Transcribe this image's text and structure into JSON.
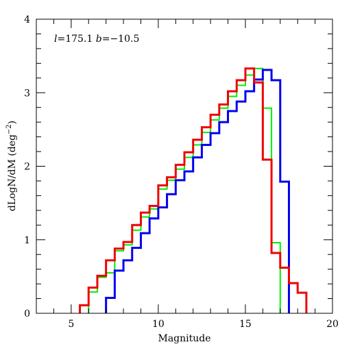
{
  "chart_data": {
    "type": "line",
    "step": true,
    "xlabel": "Magnitude",
    "ylabel": "dLogN/dM (deg",
    "ylabel_sup": "−2",
    "ylabel_close": ")",
    "annotation": {
      "l_sym": "l",
      "l_rest": "=175.1 ",
      "b_sym": "b",
      "b_rest": "=−10.5"
    },
    "xlim": [
      3,
      20
    ],
    "ylim": [
      0,
      4
    ],
    "xticks": [
      5,
      10,
      15,
      20
    ],
    "yticks": [
      0,
      1,
      2,
      3,
      4
    ],
    "xticks_minor_step": 1,
    "yticks_minor_step": 0.2,
    "series": [
      {
        "color": "#00ee00",
        "width": 2,
        "x": [
          6.0,
          6.5,
          7.0,
          7.5,
          8.0,
          8.5,
          9.0,
          9.5,
          10.0,
          10.5,
          11.0,
          11.5,
          12.0,
          12.5,
          13.0,
          13.5,
          14.0,
          14.5,
          15.0,
          15.5,
          16.0,
          16.5,
          17.0
        ],
        "y": [
          0.29,
          0.49,
          0.55,
          0.85,
          0.93,
          1.13,
          1.31,
          1.42,
          1.69,
          1.81,
          1.96,
          2.12,
          2.29,
          2.46,
          2.63,
          2.79,
          2.95,
          3.1,
          3.24,
          3.33,
          2.79,
          0.96,
          0.0
        ]
      },
      {
        "color": "#0000ee",
        "width": 3,
        "x": [
          7.0,
          7.5,
          8.0,
          8.5,
          9.0,
          9.5,
          10.0,
          10.5,
          11.0,
          11.5,
          12.0,
          12.5,
          13.0,
          13.5,
          14.0,
          14.5,
          15.0,
          15.5,
          16.0,
          16.5,
          17.0,
          17.5
        ],
        "y": [
          0.21,
          0.58,
          0.72,
          0.89,
          1.09,
          1.29,
          1.44,
          1.62,
          1.81,
          1.93,
          2.12,
          2.29,
          2.45,
          2.6,
          2.75,
          2.88,
          3.02,
          3.18,
          3.31,
          3.17,
          1.79,
          0.0
        ]
      },
      {
        "color": "#ee0000",
        "width": 2,
        "x": [
          5.5,
          6.0,
          6.5,
          7.0,
          7.5,
          8.0,
          8.5,
          9.0,
          9.5,
          10.0,
          10.5,
          11.0,
          11.5,
          12.0,
          12.5,
          13.0,
          13.5,
          14.0,
          14.5,
          15.0,
          15.5,
          16.0,
          16.5,
          17.0,
          17.5,
          18.0,
          18.5
        ],
        "y": [
          0.11,
          0.35,
          0.51,
          0.72,
          0.88,
          0.97,
          1.2,
          1.37,
          1.46,
          1.74,
          1.85,
          2.02,
          2.19,
          2.36,
          2.53,
          2.7,
          2.84,
          3.02,
          3.17,
          3.33,
          3.14,
          2.09,
          0.82,
          0.62,
          0.41,
          0.28,
          0.0
        ]
      },
      {
        "color": "#ee0000",
        "width": 3,
        "x": [
          5.5,
          6.0,
          6.5,
          7.0,
          7.5,
          8.0,
          8.5,
          9.0,
          9.5,
          10.0,
          10.5,
          11.0,
          11.5,
          12.0,
          12.5,
          13.0,
          13.5,
          14.0,
          14.5,
          15.0,
          15.5,
          16.0,
          16.5,
          17.0,
          17.5,
          18.0,
          18.5
        ],
        "y": [
          0.11,
          0.35,
          0.51,
          0.72,
          0.88,
          0.97,
          1.2,
          1.37,
          1.46,
          1.74,
          1.85,
          2.02,
          2.19,
          2.36,
          2.53,
          2.7,
          2.84,
          3.02,
          3.17,
          3.33,
          3.14,
          2.09,
          0.82,
          0.62,
          0.41,
          0.28,
          0.0
        ]
      }
    ]
  }
}
